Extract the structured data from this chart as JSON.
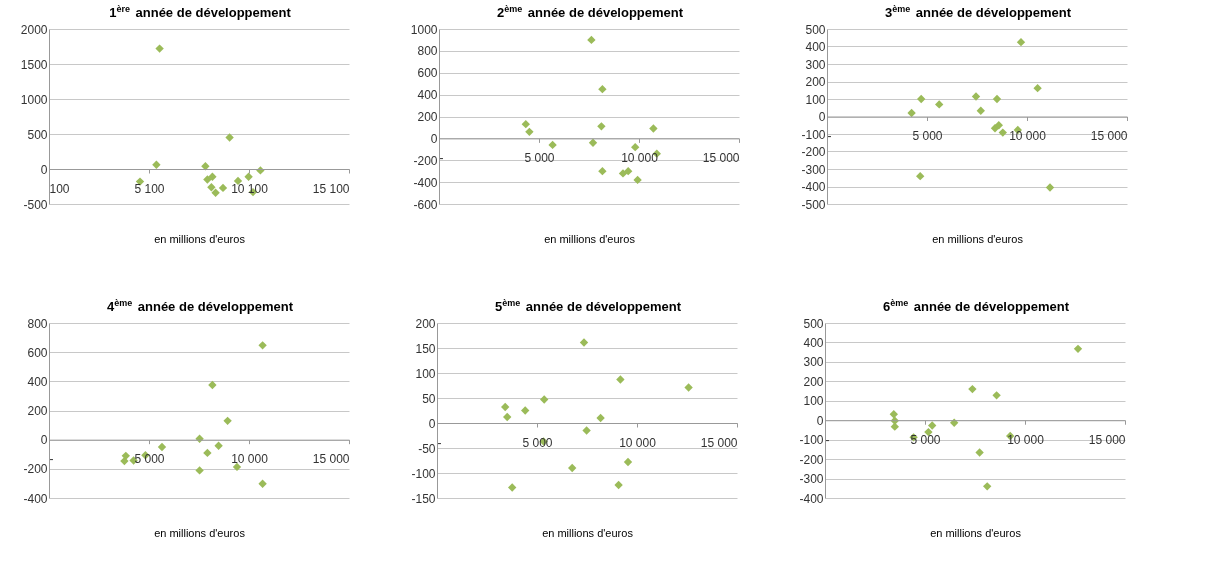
{
  "chart_data": [
    {
      "type": "scatter",
      "title": "1$^{ère}$ année de développement",
      "xlabel": "en millions d'euros",
      "color": "#9bbb59",
      "marker": "diamond",
      "grid": "y",
      "xlim": [
        100,
        15100
      ],
      "xticks": [
        {
          "value": 100,
          "label": "100"
        },
        {
          "value": 5100,
          "label": "5 100"
        },
        {
          "value": 10100,
          "label": "10 100"
        },
        {
          "value": 15100,
          "label": "15 100"
        }
      ],
      "ylim": [
        -500,
        2000
      ],
      "yticks": [
        -500,
        0,
        500,
        1000,
        1500,
        2000
      ],
      "x": [
        4650,
        5630,
        5470,
        7920,
        8020,
        8270,
        8220,
        8430,
        8800,
        9130,
        9550,
        10080,
        10300,
        10670
      ],
      "values": [
        -180,
        1720,
        60,
        40,
        -150,
        -110,
        -260,
        -340,
        -270,
        450,
        -170,
        -110,
        -330,
        -20
      ]
    },
    {
      "type": "scatter",
      "title": "2$^{ème}$ année de développement",
      "xlabel": "en millions d'euros",
      "color": "#9bbb59",
      "marker": "diamond",
      "grid": "y",
      "xlim": [
        0,
        15000
      ],
      "xticks": [
        {
          "value": 0,
          "label": "-"
        },
        {
          "value": 5000,
          "label": "5 000"
        },
        {
          "value": 10000,
          "label": "10 000"
        },
        {
          "value": 15000,
          "label": "15 000"
        }
      ],
      "ylim": [
        -600,
        1000
      ],
      "yticks": [
        -600,
        -400,
        -200,
        0,
        200,
        400,
        600,
        800,
        1000
      ],
      "x": [
        7620,
        8170,
        8120,
        4340,
        4520,
        5680,
        7700,
        8170,
        9200,
        9460,
        9930,
        9810,
        10720,
        10890
      ],
      "values": [
        900,
        450,
        110,
        130,
        60,
        -60,
        -40,
        -300,
        -320,
        -300,
        -380,
        -80,
        90,
        -140
      ]
    },
    {
      "type": "scatter",
      "title": "3$^{ème}$ année de développement",
      "xlabel": "en millions d'euros",
      "color": "#9bbb59",
      "marker": "diamond",
      "grid": "y",
      "xlim": [
        0,
        15000
      ],
      "xticks": [
        {
          "value": 0,
          "label": "-"
        },
        {
          "value": 5000,
          "label": "5 000"
        },
        {
          "value": 10000,
          "label": "10 000"
        },
        {
          "value": 15000,
          "label": "15 000"
        }
      ],
      "ylim": [
        -500,
        500
      ],
      "yticks": [
        -500,
        -400,
        -300,
        -200,
        -100,
        0,
        100,
        200,
        300,
        400,
        500
      ],
      "x": [
        4230,
        4710,
        5610,
        7450,
        7690,
        8500,
        9700,
        10530,
        4660,
        11150,
        8400,
        8590,
        8790,
        9540
      ],
      "values": [
        20,
        100,
        69,
        114,
        33,
        100,
        425,
        162,
        -341,
        -406,
        -67,
        -50,
        -92,
        -77
      ]
    },
    {
      "type": "scatter",
      "title": "4$^{ème}$ année de développement",
      "xlabel": "en millions d'euros",
      "color": "#9bbb59",
      "marker": "diamond",
      "grid": "y",
      "xlim": [
        0,
        15000
      ],
      "xticks": [
        {
          "value": 0,
          "label": "-"
        },
        {
          "value": 5000,
          "label": "5 000"
        },
        {
          "value": 10000,
          "label": "10 000"
        },
        {
          "value": 15000,
          "label": "15 000"
        }
      ],
      "ylim": [
        -400,
        800
      ],
      "yticks": [
        -400,
        -200,
        0,
        200,
        400,
        600,
        800
      ],
      "x": [
        3840,
        3770,
        4230,
        4820,
        5650,
        7530,
        7920,
        8170,
        8480,
        8930,
        7530,
        9400,
        10680,
        10680
      ],
      "values": [
        -111,
        -147,
        -143,
        -107,
        -50,
        6,
        -91,
        375,
        -42,
        129,
        -211,
        -187,
        647,
        -302
      ]
    },
    {
      "type": "scatter",
      "title": "5$^{ème}$ année de développement",
      "xlabel": "en millions d'euros",
      "color": "#9bbb59",
      "marker": "diamond",
      "grid": "y",
      "xlim": [
        0,
        15000
      ],
      "xticks": [
        {
          "value": 0,
          "label": "-"
        },
        {
          "value": 5000,
          "label": "5 000"
        },
        {
          "value": 10000,
          "label": "10 000"
        },
        {
          "value": 15000,
          "label": "15 000"
        }
      ],
      "ylim": [
        -150,
        200
      ],
      "yticks": [
        -150,
        -100,
        -50,
        0,
        50,
        100,
        150,
        200
      ],
      "x": [
        3410,
        3510,
        4410,
        5360,
        5330,
        3760,
        6760,
        7350,
        7480,
        8180,
        9170,
        9080,
        9550,
        12580
      ],
      "values": [
        32,
        12,
        25,
        47,
        -37,
        -129,
        -90,
        161,
        -15,
        10,
        87,
        -124,
        -78,
        71
      ]
    },
    {
      "type": "scatter",
      "title": "6$^{ème}$ année de développement",
      "xlabel": "en millions d'euros",
      "color": "#9bbb59",
      "marker": "diamond",
      "grid": "y",
      "xlim": [
        0,
        15000
      ],
      "xticks": [
        {
          "value": 0,
          "label": "-"
        },
        {
          "value": 5000,
          "label": "5 000"
        },
        {
          "value": 10000,
          "label": "10 000"
        },
        {
          "value": 15000,
          "label": "15 000"
        }
      ],
      "ylim": [
        -400,
        500
      ],
      "yticks": [
        -400,
        -300,
        -200,
        -100,
        0,
        100,
        200,
        300,
        400,
        500
      ],
      "x": [
        3440,
        3490,
        3490,
        4430,
        5170,
        5360,
        6460,
        7370,
        7730,
        8110,
        8580,
        9260,
        12650
      ],
      "values": [
        31,
        -3,
        -33,
        -88,
        -61,
        -27,
        -13,
        160,
        -166,
        -340,
        128,
        -81,
        367
      ]
    }
  ]
}
